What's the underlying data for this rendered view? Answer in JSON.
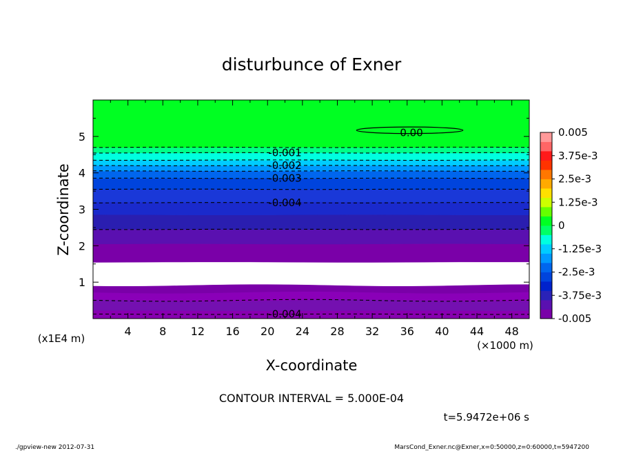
{
  "chart_data": {
    "type": "heatmap",
    "title": "disturbunce of Exner",
    "xlabel": "X-coordinate",
    "ylabel": "Z-coordinate",
    "x_unit_note": "(×1000 m)",
    "y_unit_note": "(x1E4 m)",
    "xlim": [
      0,
      50
    ],
    "ylim": [
      0,
      6
    ],
    "x_ticks": [
      4,
      8,
      12,
      16,
      20,
      24,
      28,
      32,
      36,
      40,
      44,
      48
    ],
    "y_ticks": [
      1,
      2,
      3,
      4,
      5
    ],
    "x_tick_labels": [
      "4",
      "8",
      "12",
      "16",
      "20",
      "24",
      "28",
      "32",
      "36",
      "40",
      "44",
      "48"
    ],
    "y_tick_labels": [
      "1",
      "2",
      "3",
      "4",
      "5"
    ],
    "colorbar": {
      "min": -0.005,
      "max": 0.005,
      "labels": [
        "0.005",
        "3.75e-3",
        "2.5e-3",
        "1.25e-3",
        "0",
        "-1.25e-3",
        "-2.5e-3",
        "-3.75e-3",
        "-0.005"
      ],
      "label_values": [
        0.005,
        0.00375,
        0.0025,
        0.00125,
        0,
        -0.00125,
        -0.0025,
        -0.00375,
        -0.005
      ],
      "colors": [
        "#7a00a8",
        "#5a10b0",
        "#2a22b8",
        "#0022cc",
        "#0044dd",
        "#0066ee",
        "#0099ff",
        "#00ccff",
        "#00ffe0",
        "#00ff66",
        "#00ff22",
        "#66ff00",
        "#ccff00",
        "#ffe000",
        "#ffaa00",
        "#ff7700",
        "#ff3300",
        "#ff1a1a",
        "#ff6666",
        "#ff9999"
      ]
    },
    "bands": [
      {
        "z0": 0.0,
        "z1": 0.22,
        "color": "#8800b0"
      },
      {
        "z0": 0.22,
        "z1": 0.5,
        "color": "#7410b0"
      },
      {
        "z0": 0.5,
        "z1": 0.72,
        "color": "#8a00b8"
      },
      {
        "z0": 0.72,
        "z1": 0.92,
        "color": "#7a00a8"
      },
      {
        "z0": 0.92,
        "z1": 1.55,
        "color": "#ffffff"
      },
      {
        "z0": 1.55,
        "z1": 2.05,
        "color": "#7a00a8"
      },
      {
        "z0": 2.05,
        "z1": 2.45,
        "color": "#5a10b0"
      },
      {
        "z0": 2.45,
        "z1": 2.85,
        "color": "#2a1eb0"
      },
      {
        "z0": 2.85,
        "z1": 3.2,
        "color": "#1a2acc"
      },
      {
        "z0": 3.2,
        "z1": 3.55,
        "color": "#1a38d8"
      },
      {
        "z0": 3.55,
        "z1": 3.85,
        "color": "#0044dd"
      },
      {
        "z0": 3.85,
        "z1": 4.05,
        "color": "#0066ee"
      },
      {
        "z0": 4.05,
        "z1": 4.2,
        "color": "#0099ff"
      },
      {
        "z0": 4.2,
        "z1": 4.35,
        "color": "#00ccff"
      },
      {
        "z0": 4.35,
        "z1": 4.55,
        "color": "#00ffe0"
      },
      {
        "z0": 4.55,
        "z1": 4.7,
        "color": "#00ff88"
      },
      {
        "z0": 4.7,
        "z1": 6.0,
        "color": "#00ff22"
      }
    ],
    "dashed_contours_z": [
      0.12,
      0.5,
      2.45,
      3.18,
      3.55,
      3.85,
      4.05,
      4.2,
      4.35,
      4.55,
      4.7
    ],
    "contour_labels": [
      {
        "text": "-0.001",
        "x": 22,
        "z": 4.55
      },
      {
        "text": "-0.002",
        "x": 22,
        "z": 4.2
      },
      {
        "text": "-0.003",
        "x": 22,
        "z": 3.85
      },
      {
        "text": "-0.004",
        "x": 22,
        "z": 3.18
      },
      {
        "text": "-0.004",
        "x": 22,
        "z": 0.12
      },
      {
        "text": "0.00",
        "x": 36.5,
        "z": 5.1
      }
    ],
    "zero_contour": {
      "x_center": 36.3,
      "z_center": 5.17,
      "x_halfwidth": 6.1,
      "z_halfheight": 0.09
    }
  },
  "footer": {
    "contour_interval": "CONTOUR INTERVAL = 5.000E-04",
    "time": "t=5.9472e+06 s",
    "left_note": "./gpview-new  2012-07-31",
    "right_note": "MarsCond_Exner.nc@Exner,x=0:50000,z=0:60000,t=5947200"
  }
}
